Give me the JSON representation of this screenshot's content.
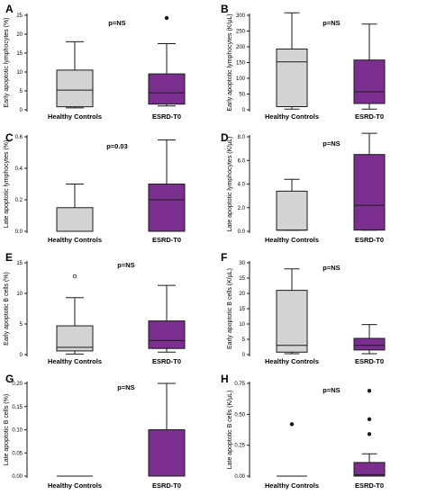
{
  "colors": {
    "healthy_fill": "#d3d3d3",
    "esrd_fill": "#7a2f8e",
    "stroke": "#1a1a1a",
    "text": "#000000"
  },
  "chart_data": [
    {
      "panel": "A",
      "type": "box",
      "pvalue": "p=NS",
      "ylabel": "Early apoptotic lymphocytes (%)",
      "ylim": [
        0,
        25
      ],
      "yticks": [
        0,
        5,
        10,
        15,
        20,
        25
      ],
      "categories": [
        "Healthy Controls",
        "ESRD-T0"
      ],
      "boxes": [
        {
          "min": 0.5,
          "q1": 0.8,
          "median": 5.2,
          "q3": 10.5,
          "max": 18,
          "outliers": []
        },
        {
          "min": 1.0,
          "q1": 1.5,
          "median": 4.5,
          "q3": 9.5,
          "max": 17.5,
          "outliers": [
            24.3
          ]
        }
      ]
    },
    {
      "panel": "B",
      "type": "box",
      "pvalue": "p=NS",
      "ylabel": "Early apoptotic lymphocytes (K/µL)",
      "ylim": [
        0,
        300
      ],
      "yticks": [
        0,
        50,
        100,
        150,
        200,
        250,
        300
      ],
      "categories": [
        "Healthy Controls",
        "ESRD-T0"
      ],
      "boxes": [
        {
          "min": 2,
          "q1": 10,
          "median": 152,
          "q3": 193,
          "max": 308,
          "outliers": []
        },
        {
          "min": 2,
          "q1": 20,
          "median": 57,
          "q3": 158,
          "max": 272,
          "outliers": []
        }
      ]
    },
    {
      "panel": "C",
      "type": "box",
      "pvalue": "p=0.03",
      "ylabel": "Late apoptotic lymphocytes (%)",
      "ylim": [
        0,
        0.6
      ],
      "yticks": [
        0.0,
        0.2,
        0.4,
        0.6
      ],
      "ytick_labels": [
        "0.0",
        "0.2",
        "0.4",
        "0.6"
      ],
      "categories": [
        "Healthy Controls",
        "ESRD-T0"
      ],
      "boxes": [
        {
          "min": 0.0,
          "q1": 0.0,
          "median": 0.0,
          "q3": 0.15,
          "max": 0.3,
          "outliers": []
        },
        {
          "min": 0.0,
          "q1": 0.0,
          "median": 0.2,
          "q3": 0.3,
          "max": 0.58,
          "outliers": []
        }
      ]
    },
    {
      "panel": "D",
      "type": "box",
      "pvalue": "p=NS",
      "ylabel": "Late apoptotic lymphocytes (K/µL)",
      "ylim": [
        0,
        8
      ],
      "yticks": [
        0,
        2,
        4,
        6,
        8
      ],
      "ytick_labels": [
        "0.0",
        "2.0",
        "4.0",
        "6.0",
        "8.0"
      ],
      "categories": [
        "Healthy Controls",
        "ESRD-T0"
      ],
      "boxes": [
        {
          "min": 0.1,
          "q1": 0.1,
          "median": 0.1,
          "q3": 3.4,
          "max": 4.4,
          "outliers": []
        },
        {
          "min": 0.1,
          "q1": 0.1,
          "median": 2.2,
          "q3": 6.5,
          "max": 8.3,
          "outliers": []
        }
      ]
    },
    {
      "panel": "E",
      "type": "box",
      "pvalue": "p=NS",
      "ylabel": "Early apoptotic B cells (%)",
      "ylim": [
        0,
        15
      ],
      "yticks": [
        0,
        5,
        10,
        15
      ],
      "categories": [
        "Healthy Controls",
        "ESRD-T0"
      ],
      "boxes": [
        {
          "min": 0.1,
          "q1": 0.6,
          "median": 1.2,
          "q3": 4.7,
          "max": 9.3,
          "outliers": [
            12.8
          ]
        },
        {
          "min": 0.4,
          "q1": 1.0,
          "median": 2.3,
          "q3": 5.5,
          "max": 11.3,
          "outliers": []
        }
      ]
    },
    {
      "panel": "F",
      "type": "box",
      "pvalue": "p=NS",
      "ylabel": "Early apoptotic B cells (K/µL)",
      "ylim": [
        0,
        30
      ],
      "yticks": [
        0,
        5,
        10,
        15,
        20,
        25,
        30
      ],
      "categories": [
        "Healthy Controls",
        "ESRD-T0"
      ],
      "boxes": [
        {
          "min": 0.3,
          "q1": 0.8,
          "median": 3.0,
          "q3": 21,
          "max": 28,
          "outliers": []
        },
        {
          "min": 0.3,
          "q1": 1.5,
          "median": 3.0,
          "q3": 5.3,
          "max": 9.8,
          "outliers": []
        }
      ]
    },
    {
      "panel": "G",
      "type": "box",
      "pvalue": "p=NS",
      "ylabel": "Late apoptotic B cells (%)",
      "ylim": [
        0,
        0.2
      ],
      "yticks": [
        0,
        0.05,
        0.1,
        0.15,
        0.2
      ],
      "ytick_labels": [
        "0.00",
        "0.05",
        "0.10",
        "0.15",
        "0.20"
      ],
      "categories": [
        "Healthy Controls",
        "ESRD-T0"
      ],
      "boxes": [
        {
          "min": 0.0,
          "q1": 0.0,
          "median": 0.0,
          "q3": 0.0,
          "max": 0.0,
          "outliers": []
        },
        {
          "min": 0.0,
          "q1": 0.0,
          "median": 0.0,
          "q3": 0.1,
          "max": 0.2,
          "outliers": []
        }
      ]
    },
    {
      "panel": "H",
      "type": "box",
      "pvalue": "p=NS",
      "ylabel": "Late apoptotic B cells (K/µL)",
      "ylim": [
        0,
        0.75
      ],
      "yticks": [
        0,
        0.25,
        0.5,
        0.75
      ],
      "ytick_labels": [
        "0.00",
        "0.25",
        "0.50",
        "0.75"
      ],
      "categories": [
        "Healthy Controls",
        "ESRD-T0"
      ],
      "boxes": [
        {
          "min": 0.0,
          "q1": 0.0,
          "median": 0.0,
          "q3": 0.0,
          "max": 0.0,
          "outliers": [
            0.42
          ]
        },
        {
          "min": 0.0,
          "q1": 0.0,
          "median": 0.01,
          "q3": 0.11,
          "max": 0.18,
          "outliers": [
            0.34,
            0.46,
            0.69
          ]
        }
      ]
    }
  ]
}
